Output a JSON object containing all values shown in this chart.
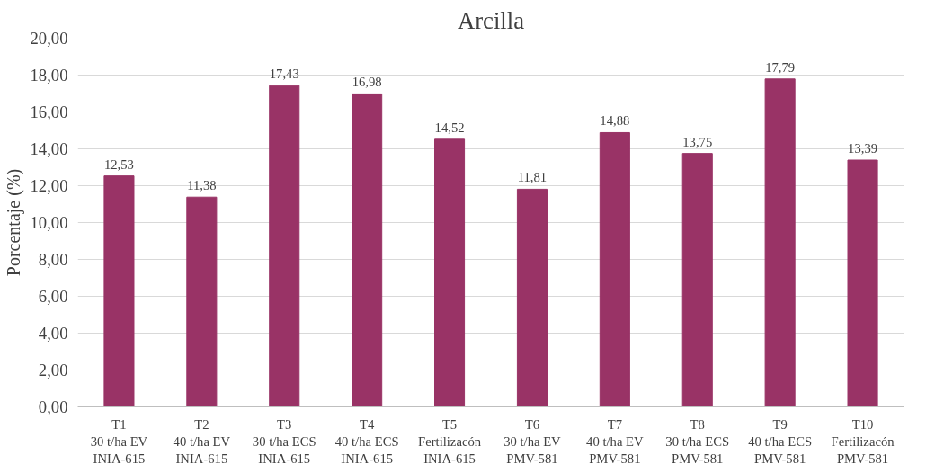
{
  "chart_data": {
    "type": "bar",
    "title": "Arcilla",
    "ylabel": "Porcentaje (%)",
    "categories": [
      "T1\n30 t/ha EV\nINIA-615",
      "T2\n40 t/ha EV\nINIA-615",
      "T3\n30 t/ha ECS\nINIA-615",
      "T4\n40 t/ha ECS\nINIA-615",
      "T5\nFertilizacón\nINIA-615",
      "T6\n30 t/ha EV\nPMV-581",
      "T7\n40 t/ha EV\nPMV-581",
      "T8\n30 t/ha ECS\nPMV-581",
      "T9\n40 t/ha ECS\nPMV-581",
      "T10\nFertilizacón\nPMV-581"
    ],
    "values": [
      12.53,
      11.38,
      17.43,
      16.98,
      14.52,
      11.81,
      14.88,
      13.75,
      17.79,
      13.39
    ],
    "value_labels": [
      "12,53",
      "11,38",
      "17,43",
      "16,98",
      "14,52",
      "11,81",
      "14,88",
      "13,75",
      "17,79",
      "13,39"
    ],
    "color": "#993366",
    "ylim": [
      0,
      20
    ],
    "yticks": [
      {
        "value": 0,
        "label": "0,00"
      },
      {
        "value": 2,
        "label": "2,00"
      },
      {
        "value": 4,
        "label": "4,00"
      },
      {
        "value": 6,
        "label": "6,00"
      },
      {
        "value": 8,
        "label": "8,00"
      },
      {
        "value": 10,
        "label": "10,00"
      },
      {
        "value": 12,
        "label": "12,00"
      },
      {
        "value": 14,
        "label": "14,00"
      },
      {
        "value": 16,
        "label": "16,00"
      },
      {
        "value": 18,
        "label": "18,00"
      },
      {
        "value": 20,
        "label": "20,00"
      }
    ],
    "grid": "y"
  }
}
